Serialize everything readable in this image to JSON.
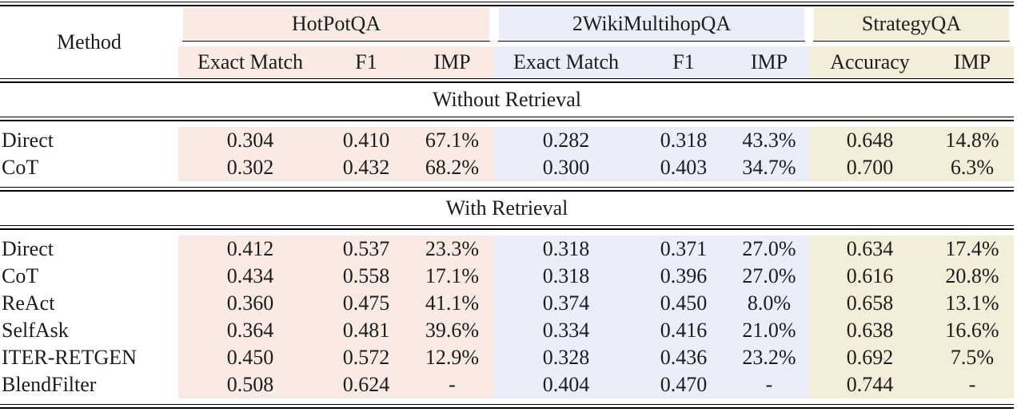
{
  "table": {
    "method_header": "Method",
    "groups": [
      {
        "name": "HotPotQA",
        "color": "#faeae4",
        "columns": [
          "Exact Match",
          "F1",
          "IMP"
        ]
      },
      {
        "name": "2WikiMultihopQA",
        "color": "#ebeefa",
        "columns": [
          "Exact Match",
          "F1",
          "IMP"
        ]
      },
      {
        "name": "StrategyQA",
        "color": "#f3edda",
        "columns": [
          "Accuracy",
          "IMP"
        ]
      }
    ],
    "sections": [
      {
        "title": "Without Retrieval",
        "rows": [
          {
            "method": "Direct",
            "values": [
              "0.304",
              "0.410",
              "67.1%",
              "0.282",
              "0.318",
              "43.3%",
              "0.648",
              "14.8%"
            ]
          },
          {
            "method": "CoT",
            "values": [
              "0.302",
              "0.432",
              "68.2%",
              "0.300",
              "0.403",
              "34.7%",
              "0.700",
              "6.3%"
            ]
          }
        ]
      },
      {
        "title": "With Retrieval",
        "rows": [
          {
            "method": "Direct",
            "values": [
              "0.412",
              "0.537",
              "23.3%",
              "0.318",
              "0.371",
              "27.0%",
              "0.634",
              "17.4%"
            ]
          },
          {
            "method": "CoT",
            "values": [
              "0.434",
              "0.558",
              "17.1%",
              "0.318",
              "0.396",
              "27.0%",
              "0.616",
              "20.8%"
            ]
          },
          {
            "method": "ReAct",
            "values": [
              "0.360",
              "0.475",
              "41.1%",
              "0.374",
              "0.450",
              "8.0%",
              "0.658",
              "13.1%"
            ]
          },
          {
            "method": "SelfAsk",
            "values": [
              "0.364",
              "0.481",
              "39.6%",
              "0.334",
              "0.416",
              "21.0%",
              "0.638",
              "16.6%"
            ]
          },
          {
            "method": "ITER-RETGEN",
            "values": [
              "0.450",
              "0.572",
              "12.9%",
              "0.328",
              "0.436",
              "23.2%",
              "0.692",
              "7.5%"
            ]
          },
          {
            "method": "BlendFilter",
            "values": [
              "0.508",
              "0.624",
              "-",
              "0.404",
              "0.470",
              "-",
              "0.744",
              "-"
            ]
          }
        ]
      }
    ]
  }
}
